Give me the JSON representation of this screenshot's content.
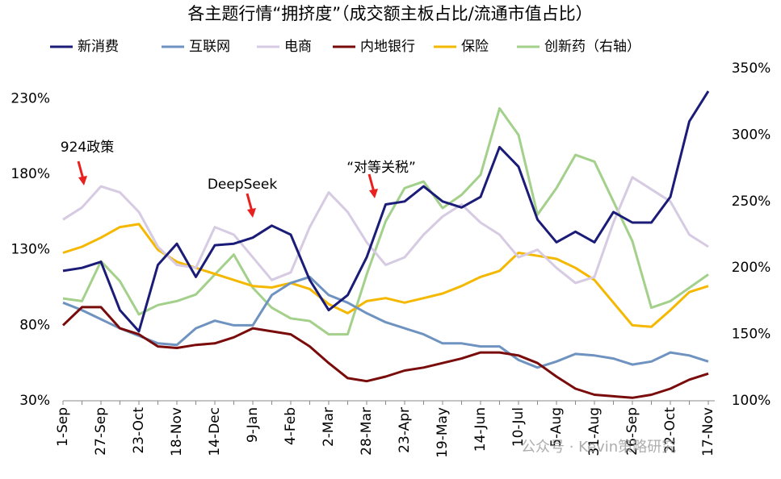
{
  "chart_data": {
    "type": "line",
    "title": "各主题行情“拥挤度”（成交额主板占比/流通市值占比）",
    "categories": [
      "1-Sep",
      null,
      "27-Sep",
      null,
      "23-Oct",
      null,
      "18-Nov",
      null,
      "14-Dec",
      null,
      "9-Jan",
      null,
      "4-Feb",
      null,
      "2-Mar",
      null,
      "28-Mar",
      null,
      "23-Apr",
      null,
      "19-May",
      null,
      "14-Jun",
      null,
      "10-Jul",
      null,
      "5-Aug",
      null,
      "31-Aug",
      null,
      "26-Sep",
      null,
      "22-Oct",
      null,
      "17-Nov"
    ],
    "series": [
      {
        "name": "新消费",
        "color": "#1b1b78",
        "values": [
          116,
          118,
          122,
          90,
          76,
          120,
          134,
          112,
          133,
          134,
          138,
          146,
          140,
          110,
          90,
          100,
          125,
          160,
          162,
          172,
          162,
          158,
          165,
          198,
          185,
          150,
          135,
          142,
          135,
          155,
          148,
          148,
          165,
          215,
          235
        ]
      },
      {
        "name": "互联网",
        "color": "#6f93c0",
        "values": [
          95,
          90,
          84,
          78,
          73,
          68,
          67,
          78,
          83,
          80,
          80,
          100,
          108,
          112,
          100,
          95,
          88,
          82,
          78,
          74,
          68,
          68,
          66,
          66,
          57,
          52,
          56,
          61,
          60,
          58,
          54,
          56,
          62,
          60,
          56
        ]
      },
      {
        "name": "电商",
        "color": "#d6cbe2",
        "values": [
          150,
          158,
          172,
          168,
          155,
          132,
          120,
          118,
          145,
          140,
          125,
          110,
          115,
          145,
          168,
          155,
          135,
          120,
          125,
          140,
          152,
          160,
          148,
          140,
          125,
          130,
          118,
          108,
          112,
          148,
          178,
          170,
          162,
          140,
          132
        ]
      },
      {
        "name": "内地银行",
        "color": "#7a0b0b",
        "values": [
          80,
          92,
          92,
          78,
          74,
          66,
          65,
          67,
          68,
          72,
          78,
          76,
          74,
          66,
          55,
          45,
          43,
          46,
          50,
          52,
          55,
          58,
          62,
          62,
          60,
          55,
          46,
          38,
          34,
          33,
          32,
          34,
          38,
          44,
          48
        ]
      },
      {
        "name": "保险",
        "color": "#f5b800",
        "values": [
          128,
          132,
          138,
          145,
          147,
          130,
          122,
          118,
          114,
          110,
          106,
          105,
          108,
          104,
          94,
          88,
          96,
          98,
          95,
          98,
          101,
          106,
          112,
          116,
          128,
          126,
          124,
          118,
          110,
          95,
          80,
          79,
          90,
          102,
          106
        ]
      },
      {
        "name": "创新药（右轴）",
        "color": "#a3d08a",
        "axis": "y2",
        "values": [
          177,
          175,
          205,
          190,
          165,
          172,
          175,
          180,
          195,
          210,
          185,
          170,
          162,
          160,
          150,
          150,
          195,
          235,
          260,
          265,
          245,
          255,
          270,
          320,
          300,
          240,
          260,
          285,
          280,
          250,
          220,
          170,
          175,
          185,
          195
        ]
      }
    ],
    "ylim": [
      30,
      250
    ],
    "yticks": [
      {
        "value": 30,
        "label": "30%"
      },
      {
        "value": 80,
        "label": "80%"
      },
      {
        "value": 130,
        "label": "130%"
      },
      {
        "value": 180,
        "label": "180%"
      },
      {
        "value": 230,
        "label": "230%"
      }
    ],
    "y2lim": [
      100,
      350
    ],
    "y2ticks": [
      {
        "value": 100,
        "label": "100%"
      },
      {
        "value": 150,
        "label": "150%"
      },
      {
        "value": 200,
        "label": "200%"
      },
      {
        "value": 250,
        "label": "250%"
      },
      {
        "value": 300,
        "label": "300%"
      },
      {
        "value": 350,
        "label": "350%"
      }
    ],
    "annotations": [
      "924政策",
      "DeepSeek",
      "“对等关税”"
    ],
    "watermark": "公众号 · Kevin策略研究",
    "legend": "top"
  }
}
